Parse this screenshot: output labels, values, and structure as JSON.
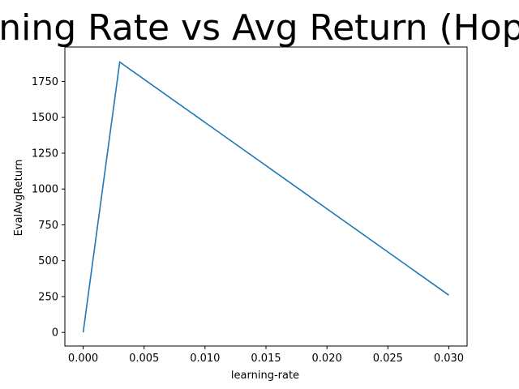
{
  "chart_data": {
    "type": "line",
    "title": "Learning Rate vs Avg Return (Hopper)",
    "xlabel": "learning-rate",
    "ylabel": "EvalAvgReturn",
    "xlim": [
      -0.0015,
      0.0315
    ],
    "ylim": [
      -95,
      1990
    ],
    "xticks": [
      0.0,
      0.005,
      0.01,
      0.015,
      0.02,
      0.025,
      0.03
    ],
    "xtick_labels": [
      "0.000",
      "0.005",
      "0.010",
      "0.015",
      "0.020",
      "0.025",
      "0.030"
    ],
    "yticks": [
      0,
      250,
      500,
      750,
      1000,
      1250,
      1500,
      1750
    ],
    "ytick_labels": [
      "0",
      "250",
      "500",
      "750",
      "1000",
      "1250",
      "1500",
      "1750"
    ],
    "grid": false,
    "series": [
      {
        "color": "#1f77b4",
        "x": [
          0.0,
          0.003,
          0.03
        ],
        "y": [
          0,
          1885,
          260
        ]
      }
    ]
  }
}
